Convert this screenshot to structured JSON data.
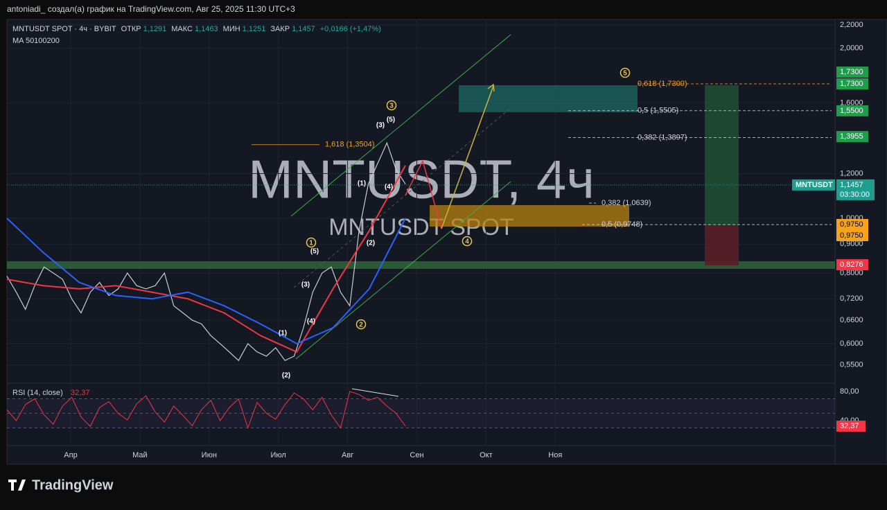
{
  "header": {
    "title": "antoniadi_ создал(а) график на TradingView.com, Авг 25, 2025 11:30 UTC+3"
  },
  "legend": {
    "symbol": "MNTUSDT SPOT · 4ч · BYBIT",
    "fields": [
      {
        "label": "ОТКР",
        "value": "1,1291"
      },
      {
        "label": "МАКС",
        "value": "1,1463"
      },
      {
        "label": "МИН",
        "value": "1,1251"
      },
      {
        "label": "ЗАКР",
        "value": "1,1457"
      }
    ],
    "change": "+0,0166 (+1,47%)",
    "ma": "MA 50100200"
  },
  "watermark": {
    "symbol": "MNTUSDT, 4ч",
    "description": "MNTUSDT SPOT"
  },
  "chart_data": {
    "type": "line",
    "log_scale": true,
    "grid": true,
    "ylim": [
      0.512,
      2.25
    ],
    "yticks": [
      {
        "value": 2.2,
        "label": "2,2000"
      },
      {
        "value": 2.0,
        "label": "2,0000"
      },
      {
        "value": 1.6,
        "label": "1,6000"
      },
      {
        "value": 1.2,
        "label": "1,2000"
      },
      {
        "value": 1.0,
        "label": "1,0000"
      },
      {
        "value": 0.9,
        "label": "0,9000"
      },
      {
        "value": 0.8,
        "label": "0,8000"
      },
      {
        "value": 0.72,
        "label": "0,7200"
      },
      {
        "value": 0.66,
        "label": "0,6600"
      },
      {
        "value": 0.6,
        "label": "0,6000"
      },
      {
        "value": 0.55,
        "label": "0,5500"
      }
    ],
    "time_labels": [
      "Апр",
      "Май",
      "Июн",
      "Июл",
      "Авг",
      "Сен",
      "Окт",
      "Ноя"
    ],
    "series": [
      {
        "color": "#c8ccd6",
        "values": [
          0.79,
          0.74,
          0.69,
          0.76,
          0.82,
          0.8,
          0.78,
          0.72,
          0.68,
          0.74,
          0.77,
          0.73,
          0.75,
          0.8,
          0.76,
          0.75,
          0.76,
          0.8,
          0.7,
          0.68,
          0.66,
          0.65,
          0.62,
          0.6,
          0.58,
          0.56,
          0.6,
          0.58,
          0.57,
          0.59,
          0.56,
          0.57,
          0.64,
          0.74,
          0.8,
          0.82,
          0.74,
          0.7,
          0.95,
          1.15,
          1.25,
          1.36,
          1.22,
          1.15
        ]
      },
      {
        "color": "#f23645",
        "values": [
          0.78,
          0.76,
          0.75,
          0.76,
          0.74,
          0.72,
          0.68,
          0.62,
          0.58,
          0.75,
          0.95,
          1.24
        ]
      },
      {
        "color": "#2962ff",
        "values": [
          1.0,
          0.87,
          0.77,
          0.73,
          0.72,
          0.74,
          0.7,
          0.65,
          0.6,
          0.64,
          0.75,
          1.0
        ]
      }
    ],
    "fibs": [
      {
        "label": "1,618 (1,3504)",
        "price": 1.3504,
        "color": "#f7a21b"
      },
      {
        "label": "0,618 (1,7300)",
        "price": 1.73,
        "color": "#f7a21b"
      },
      {
        "label": "0,5 (1,5505)",
        "price": 1.5505,
        "color": "#d1d4dc"
      },
      {
        "label": "0,382 (1,3897)",
        "price": 1.3897,
        "color": "#d1d4dc"
      },
      {
        "label": "0,382 (1,0639)",
        "price": 1.0639,
        "color": "#d1d4dc"
      },
      {
        "label": "0,5 (0,9748)",
        "price": 0.9748,
        "color": "#d1d4dc"
      }
    ],
    "waves": [
      "1",
      "(5)",
      "(3)",
      "(4)",
      "(1)",
      "(2)",
      "2",
      "(2)",
      "(1)",
      "(4)",
      "(3)",
      "(5)",
      "3",
      "4",
      "5"
    ],
    "badges": [
      {
        "value": 1.73,
        "label": "1,7300",
        "color": "#1e9e4a"
      },
      {
        "value": 1.73,
        "label": "1,7300",
        "color": "#1e9e4a"
      },
      {
        "value": 1.55,
        "label": "1,5500",
        "color": "#1e9e4a"
      },
      {
        "value": 1.3955,
        "label": "1,3955",
        "color": "#1e9e4a"
      },
      {
        "value": 0.975,
        "label": "0,9750",
        "color": "#f7a21b"
      },
      {
        "value": 0.975,
        "label": "0,9750",
        "color": "#f7a21b"
      },
      {
        "value": 0.8276,
        "label": "0,8276",
        "color": "#f23645"
      }
    ],
    "current": {
      "symbol": "MNTUSDT",
      "value": 1.1457,
      "label": "1,1457",
      "timer": "03:30:00",
      "color": "#1f9e8f"
    }
  },
  "rsi": {
    "title": "RSI (14, close)",
    "value": 32.37,
    "value_label": "32,37",
    "color": "#f23645",
    "ylim": [
      6.7,
      89.5
    ],
    "yticks": [
      {
        "value": 80,
        "label": "80,00"
      },
      {
        "value": 40,
        "label": "40,00"
      }
    ],
    "levels": [
      70,
      50,
      30
    ],
    "values": [
      55,
      40,
      62,
      70,
      48,
      35,
      60,
      72,
      45,
      32,
      58,
      66,
      50,
      41,
      63,
      74,
      52,
      38,
      60,
      47,
      33,
      55,
      68,
      40,
      58,
      70,
      30,
      65,
      50,
      42,
      62,
      78,
      70,
      55,
      72,
      48,
      30,
      80,
      76,
      68,
      72,
      60,
      50,
      32.37
    ]
  },
  "footer": {
    "brand": "TradingView"
  }
}
